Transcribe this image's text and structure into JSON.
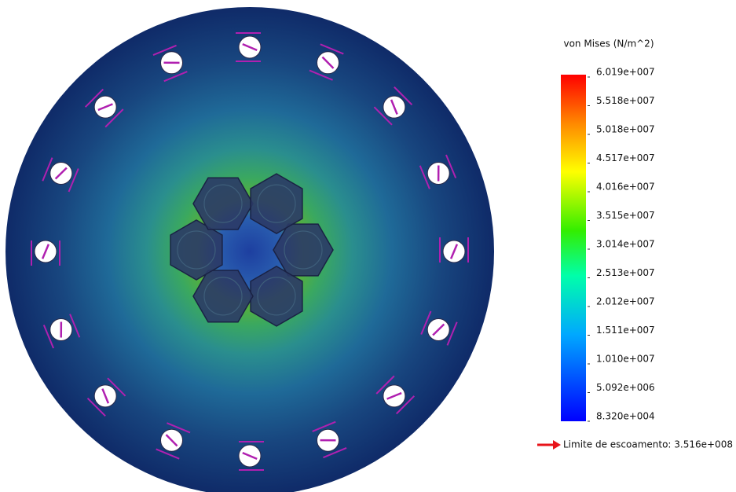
{
  "legend": {
    "title": "von Mises (N/m^2)",
    "labels": [
      "6.019e+007",
      "5.518e+007",
      "5.018e+007",
      "4.517e+007",
      "4.016e+007",
      "3.515e+007",
      "3.014e+007",
      "2.513e+007",
      "2.012e+007",
      "1.511e+007",
      "1.010e+007",
      "5.092e+006",
      "8.320e+004"
    ]
  },
  "yield_note": "Limite de escoamento: 3.516e+008"
}
